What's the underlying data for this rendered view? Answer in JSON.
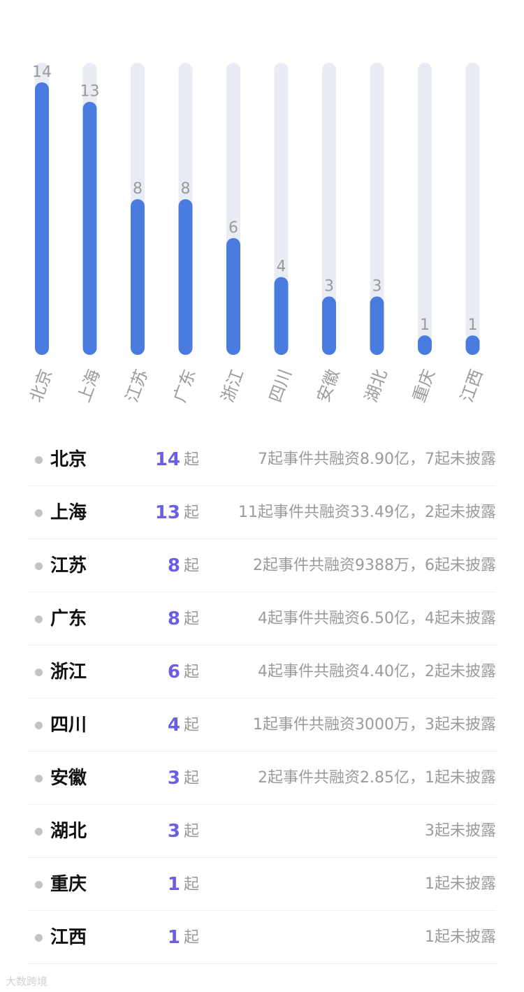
{
  "chart_data": {
    "type": "bar",
    "categories": [
      "北京",
      "上海",
      "江苏",
      "广东",
      "浙江",
      "四川",
      "安徽",
      "湖北",
      "重庆",
      "江西"
    ],
    "values": [
      14,
      13,
      8,
      8,
      6,
      4,
      3,
      3,
      1,
      1
    ],
    "ylim": [
      0,
      15
    ],
    "colors": {
      "bar": "#4a7ce0",
      "track": "#e9ecf4",
      "label": "#9b9b9b"
    }
  },
  "table": {
    "unit": "起",
    "rows": [
      {
        "name": "北京",
        "count": "14",
        "desc": "7起事件共融资8.90亿，7起未披露"
      },
      {
        "name": "上海",
        "count": "13",
        "desc": "11起事件共融资33.49亿，2起未披露"
      },
      {
        "name": "江苏",
        "count": "8",
        "desc": "2起事件共融资9388万，6起未披露"
      },
      {
        "name": "广东",
        "count": "8",
        "desc": "4起事件共融资6.50亿，4起未披露"
      },
      {
        "name": "浙江",
        "count": "6",
        "desc": "4起事件共融资4.40亿，2起未披露"
      },
      {
        "name": "四川",
        "count": "4",
        "desc": "1起事件共融资3000万，3起未披露"
      },
      {
        "name": "安徽",
        "count": "3",
        "desc": "2起事件共融资2.85亿，1起未披露"
      },
      {
        "name": "湖北",
        "count": "3",
        "desc": "3起未披露"
      },
      {
        "name": "重庆",
        "count": "1",
        "desc": "1起未披露"
      },
      {
        "name": "江西",
        "count": "1",
        "desc": "1起未披露"
      }
    ],
    "colors": {
      "name": "#111111",
      "count": "#6a5fe0",
      "muted": "#9b9b9b"
    }
  },
  "watermark": "大数跨境"
}
